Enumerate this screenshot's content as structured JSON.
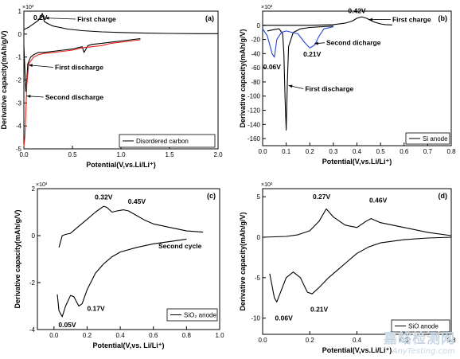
{
  "chart_data": [
    {
      "type": "line",
      "panel_label": "(a)",
      "xlabel": "Potential(V,vs.Li/Li⁺)",
      "ylabel": "Derivative capacity(mAh/g/V)",
      "multiplier": "×10³",
      "xlim": [
        0,
        2.0
      ],
      "ylim": [
        -5,
        1
      ],
      "x_ticks": [
        "0.0",
        "0.5",
        "1.0",
        "1.5",
        "2.0"
      ],
      "y_ticks": [
        "-5",
        "-4",
        "-3",
        "-2",
        "-1",
        "0",
        "1"
      ],
      "legend": "Disordered carbon",
      "series": [
        {
          "color": "#000000",
          "x": [
            0.0,
            0.05,
            0.1,
            0.15,
            0.19,
            0.21,
            0.25,
            0.3,
            0.45,
            0.6,
            0.8,
            1.0,
            1.2,
            1.5,
            1.8,
            2.0
          ],
          "y": [
            0.2,
            0.3,
            0.45,
            0.6,
            0.9,
            0.55,
            0.45,
            0.35,
            0.22,
            0.15,
            0.1,
            0.07,
            0.05,
            0.03,
            0.02,
            0.02
          ]
        },
        {
          "color": "#000000",
          "x": [
            0.0,
            0.01,
            0.02,
            0.03,
            0.04,
            0.05,
            0.07,
            0.1,
            0.15,
            0.2,
            0.3,
            0.4,
            0.5,
            0.6,
            0.62,
            0.66,
            0.7,
            0.8,
            0.9,
            1.0,
            1.1,
            1.2
          ],
          "y": [
            -0.5,
            -1.5,
            -2.5,
            -2.0,
            -1.3,
            -1.2,
            -1.0,
            -0.9,
            -0.8,
            -0.8,
            -0.75,
            -0.7,
            -0.65,
            -0.55,
            -0.8,
            -0.5,
            -0.45,
            -0.4,
            -0.35,
            -0.3,
            -0.25,
            -0.2
          ]
        },
        {
          "color": "#e8231a",
          "x": [
            0.0,
            0.01,
            0.02,
            0.03,
            0.05,
            0.1,
            0.15,
            0.2,
            0.3,
            0.4,
            0.5,
            0.6,
            0.7,
            0.8,
            0.9,
            1.0,
            1.1,
            1.2
          ],
          "y": [
            -4.9,
            -4.5,
            -3.5,
            -2.2,
            -1.3,
            -1.0,
            -0.9,
            -0.85,
            -0.8,
            -0.75,
            -0.7,
            -0.6,
            -0.55,
            -0.5,
            -0.4,
            -0.35,
            -0.3,
            -0.25
          ]
        }
      ],
      "annotations": [
        {
          "text": "0.2V",
          "x": 0.17,
          "y": 0.62,
          "anchor": "middle"
        },
        {
          "text": "First charge",
          "x": 0.55,
          "y": 0.55,
          "anchor": "start",
          "arrow_to": [
            0.22,
            0.7
          ]
        },
        {
          "text": "First discharge",
          "x": 0.32,
          "y": -1.55,
          "anchor": "start",
          "arrow_to": [
            0.05,
            -1.35
          ]
        },
        {
          "text": "Second discharge",
          "x": 0.22,
          "y": -2.85,
          "anchor": "start",
          "arrow_to": [
            0.03,
            -2.7
          ]
        }
      ]
    },
    {
      "type": "line",
      "panel_label": "(b)",
      "xlabel": "Potential(V,vs.Li/Li⁺)",
      "ylabel": "Derivative capacity(mAh/g/V)",
      "multiplier": "×10³",
      "xlim": [
        0,
        0.8
      ],
      "ylim": [
        -170,
        20
      ],
      "x_ticks": [
        "0.0",
        "0.1",
        "0.2",
        "0.3",
        "0.4",
        "0.5",
        "0.6",
        "0.7",
        "0.8"
      ],
      "y_ticks": [
        "-160",
        "-140",
        "-120",
        "-100",
        "-80",
        "-60",
        "-40",
        "-20",
        "0"
      ],
      "legend": "Si anode",
      "series": [
        {
          "color": "#000000",
          "x": [
            0.0,
            0.1,
            0.2,
            0.3,
            0.35,
            0.38,
            0.4,
            0.42,
            0.44,
            0.47,
            0.5,
            0.52,
            0.55
          ],
          "y": [
            0,
            0,
            0,
            1,
            3,
            6,
            10,
            12,
            10,
            5,
            2,
            1,
            0.5
          ]
        },
        {
          "color": "#000000",
          "x": [
            0.02,
            0.05,
            0.07,
            0.085,
            0.09,
            0.095,
            0.1,
            0.105,
            0.11,
            0.13,
            0.16,
            0.2,
            0.25,
            0.3
          ],
          "y": [
            -8,
            -6,
            -5,
            -12,
            -40,
            -100,
            -148,
            -80,
            -30,
            -10,
            -5,
            -3,
            -2,
            -1
          ]
        },
        {
          "color": "#2443d6",
          "x": [
            0.0,
            0.02,
            0.04,
            0.05,
            0.06,
            0.08,
            0.1,
            0.15,
            0.18,
            0.2,
            0.21,
            0.22,
            0.24,
            0.26,
            0.3
          ],
          "y": [
            -5,
            -15,
            -40,
            -45,
            -20,
            -10,
            -8,
            -12,
            -25,
            -32,
            -30,
            -28,
            -15,
            -5,
            -2
          ]
        }
      ],
      "annotations": [
        {
          "text": "0.42V",
          "x": 0.4,
          "y": 17,
          "anchor": "middle"
        },
        {
          "text": "First charge",
          "x": 0.55,
          "y": 5,
          "anchor": "start",
          "arrow_to": [
            0.45,
            8
          ]
        },
        {
          "text": "Second dicharge",
          "x": 0.27,
          "y": -28,
          "anchor": "start",
          "arrow_to": [
            0.22,
            -26
          ]
        },
        {
          "text": "0.21V",
          "x": 0.21,
          "y": -44,
          "anchor": "middle"
        },
        {
          "text": "0.06V",
          "x": 0.04,
          "y": -62,
          "anchor": "middle"
        },
        {
          "text": "First discharge",
          "x": 0.18,
          "y": -93,
          "anchor": "start",
          "arrow_to": [
            0.11,
            -85
          ]
        }
      ]
    },
    {
      "type": "line",
      "panel_label": "(c)",
      "xlabel": "Potential(V,vs. Li/Li⁺)",
      "ylabel": "Derivative capacity(mAh/g/V)",
      "multiplier": "×10³",
      "xlim": [
        -0.1,
        1.0
      ],
      "ylim": [
        -4,
        2
      ],
      "x_ticks": [
        "0.0",
        "0.2",
        "0.4",
        "0.6",
        "0.8",
        "1.0"
      ],
      "y_ticks": [
        "-4",
        "-2",
        "0",
        "2"
      ],
      "legend": "SiO₂ anode",
      "series": [
        {
          "color": "#000000",
          "x": [
            0.03,
            0.05,
            0.07,
            0.1,
            0.15,
            0.2,
            0.25,
            0.3,
            0.32,
            0.35,
            0.38,
            0.42,
            0.45,
            0.5,
            0.55,
            0.6,
            0.7,
            0.8,
            0.9
          ],
          "y": [
            -0.5,
            0,
            0.05,
            0.1,
            0.4,
            0.7,
            1.0,
            1.25,
            1.2,
            1.0,
            1.05,
            1.1,
            1.05,
            0.85,
            0.65,
            0.5,
            0.35,
            0.2,
            0.15
          ]
        },
        {
          "color": "#000000",
          "x": [
            0.02,
            0.03,
            0.05,
            0.07,
            0.1,
            0.12,
            0.15,
            0.17,
            0.2,
            0.25,
            0.3,
            0.35,
            0.4,
            0.5,
            0.6,
            0.7,
            0.8
          ],
          "y": [
            -2.5,
            -3.2,
            -3.45,
            -3.0,
            -2.55,
            -2.6,
            -3.0,
            -2.9,
            -2.3,
            -1.6,
            -1.2,
            -0.9,
            -0.7,
            -0.5,
            -0.35,
            -0.25,
            -0.15
          ]
        }
      ],
      "annotations": [
        {
          "text": "0.32V",
          "x": 0.3,
          "y": 1.55,
          "anchor": "middle"
        },
        {
          "text": "0.45V",
          "x": 0.5,
          "y": 1.35,
          "anchor": "middle"
        },
        {
          "text": "Second cycle",
          "x": 0.63,
          "y": -0.55,
          "anchor": "start"
        },
        {
          "text": "0.17V",
          "x": 0.2,
          "y": -3.2,
          "anchor": "start"
        },
        {
          "text": "0.05V",
          "x": 0.08,
          "y": -3.9,
          "anchor": "middle"
        }
      ]
    },
    {
      "type": "line",
      "panel_label": "(d)",
      "xlabel": "Potential(V,vs.Li/Li⁺)",
      "ylabel": "Derivative capacity(mAh/g/V)",
      "multiplier": "×10³",
      "xlim": [
        0,
        0.8
      ],
      "ylim": [
        -12,
        6
      ],
      "x_ticks": [
        "0.0",
        "0.2",
        "0.4",
        "0.6",
        "0.8"
      ],
      "y_ticks": [
        "-10",
        "-5",
        "0",
        "5"
      ],
      "legend": "SiO anode",
      "series": [
        {
          "color": "#000000",
          "x": [
            0.0,
            0.1,
            0.15,
            0.2,
            0.24,
            0.27,
            0.3,
            0.35,
            0.4,
            0.44,
            0.46,
            0.5,
            0.6,
            0.7,
            0.8
          ],
          "y": [
            0,
            0.1,
            0.3,
            0.8,
            2.0,
            3.5,
            2.5,
            1.5,
            1.2,
            2.0,
            2.3,
            1.8,
            1.2,
            0.6,
            0.2
          ]
        },
        {
          "color": "#000000",
          "x": [
            0.03,
            0.05,
            0.06,
            0.08,
            0.1,
            0.13,
            0.16,
            0.19,
            0.21,
            0.24,
            0.28,
            0.32,
            0.36,
            0.4,
            0.45,
            0.5,
            0.6,
            0.7,
            0.8
          ],
          "y": [
            -4.5,
            -7.5,
            -8.0,
            -6.5,
            -5.0,
            -4.3,
            -5.0,
            -6.8,
            -7.0,
            -6.2,
            -5.0,
            -4.0,
            -3.0,
            -2.0,
            -1.2,
            -0.7,
            -0.3,
            -0.1,
            0
          ]
        }
      ],
      "annotations": [
        {
          "text": "0.27V",
          "x": 0.25,
          "y": 4.7,
          "anchor": "middle"
        },
        {
          "text": "0.46V",
          "x": 0.49,
          "y": 4.3,
          "anchor": "middle"
        },
        {
          "text": "0.06V",
          "x": 0.09,
          "y": -10.3,
          "anchor": "middle"
        },
        {
          "text": "0.21V",
          "x": 0.24,
          "y": -9.2,
          "anchor": "middle"
        }
      ]
    }
  ],
  "watermark": {
    "cn": "嘉峪检测网",
    "en": "AnyTesting.com"
  }
}
